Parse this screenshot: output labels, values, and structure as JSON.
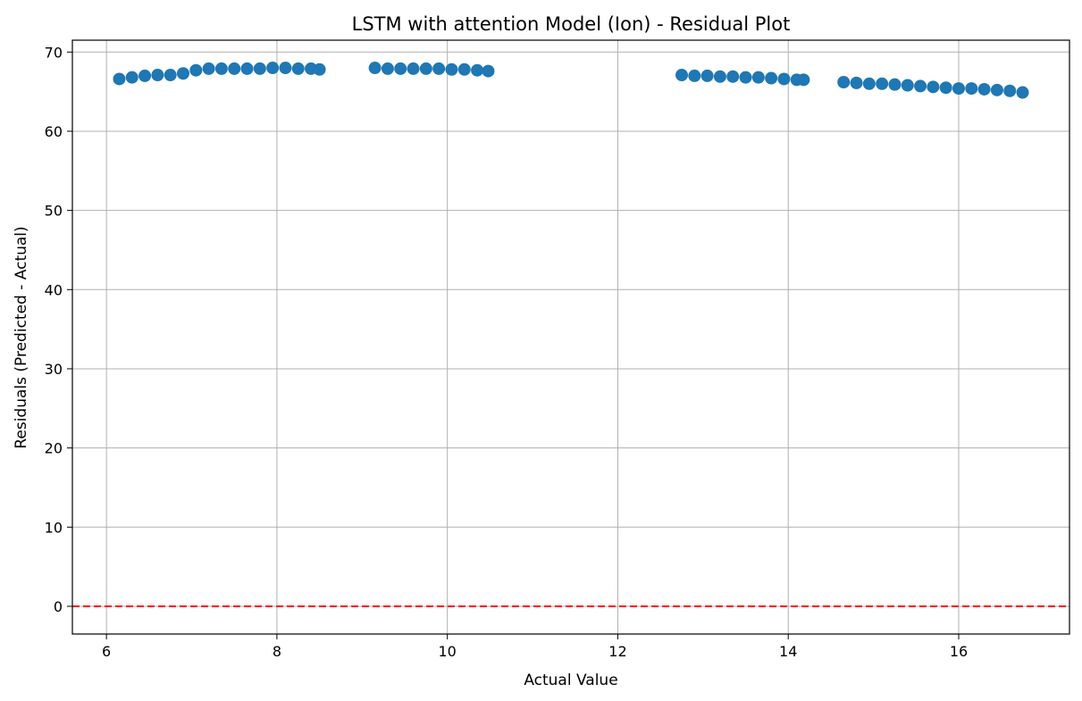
{
  "chart_data": {
    "type": "scatter",
    "title": "LSTM with attention Model (Ion) - Residual Plot",
    "xlabel": "Actual Value",
    "ylabel": "Residuals (Predicted - Actual)",
    "xlim": [
      5.6,
      17.3
    ],
    "ylim": [
      -3.5,
      71.5
    ],
    "xticks": [
      6,
      8,
      10,
      12,
      14,
      16
    ],
    "yticks": [
      0,
      10,
      20,
      30,
      40,
      50,
      60,
      70
    ],
    "grid": true,
    "reference_line": {
      "y": 0,
      "color": "#ff0000",
      "style": "dashed"
    },
    "series": [
      {
        "color": "#1f77b4",
        "x": [
          6.15,
          6.3,
          6.45,
          6.6,
          6.75,
          6.9,
          7.05,
          7.2,
          7.35,
          7.5,
          7.65,
          7.8,
          7.95,
          8.1,
          8.25,
          8.4,
          8.5,
          9.15,
          9.3,
          9.45,
          9.6,
          9.75,
          9.9,
          10.05,
          10.2,
          10.35,
          10.48,
          12.75,
          12.9,
          13.05,
          13.2,
          13.35,
          13.5,
          13.65,
          13.8,
          13.95,
          14.1,
          14.18,
          14.65,
          14.8,
          14.95,
          15.1,
          15.25,
          15.4,
          15.55,
          15.7,
          15.85,
          16.0,
          16.15,
          16.3,
          16.45,
          16.6,
          16.75
        ],
        "y": [
          66.6,
          66.8,
          67.0,
          67.1,
          67.1,
          67.3,
          67.7,
          67.9,
          67.9,
          67.9,
          67.9,
          67.9,
          68.0,
          68.0,
          67.9,
          67.9,
          67.8,
          68.0,
          67.9,
          67.9,
          67.9,
          67.9,
          67.9,
          67.8,
          67.8,
          67.7,
          67.6,
          67.1,
          67.0,
          67.0,
          66.9,
          66.9,
          66.8,
          66.8,
          66.7,
          66.6,
          66.5,
          66.5,
          66.2,
          66.1,
          66.0,
          66.0,
          65.9,
          65.8,
          65.7,
          65.6,
          65.5,
          65.4,
          65.4,
          65.3,
          65.2,
          65.1,
          64.9
        ]
      }
    ]
  }
}
